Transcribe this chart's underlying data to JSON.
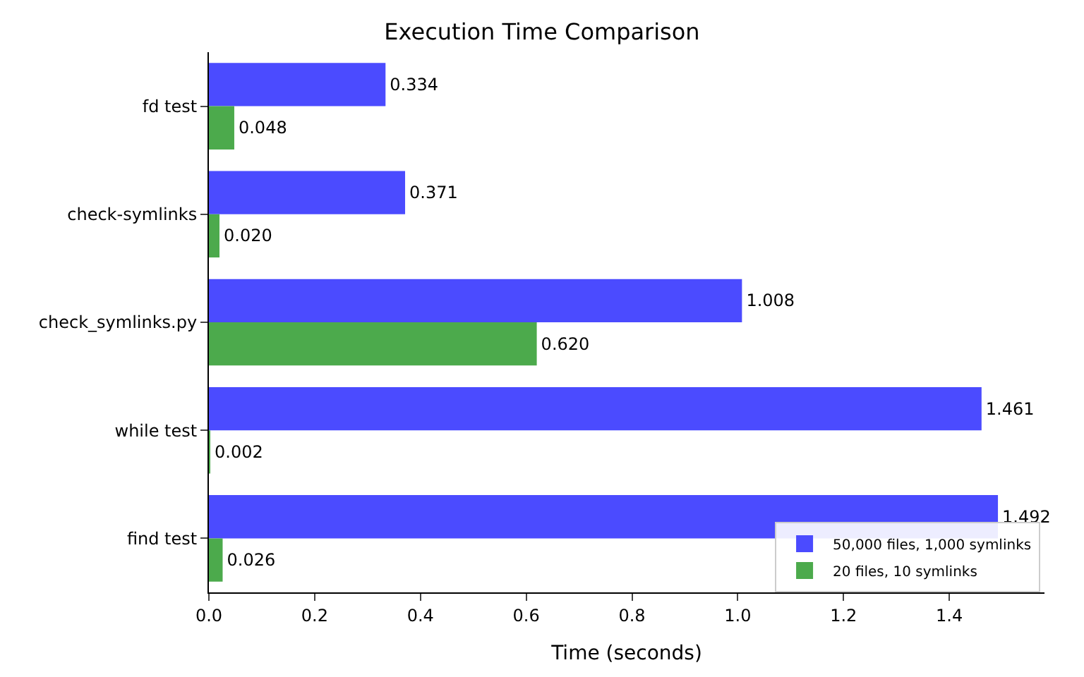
{
  "chart_data": {
    "type": "bar",
    "orientation": "horizontal",
    "title": "Execution Time Comparison",
    "xlabel": "Time (seconds)",
    "categories": [
      "fd test",
      "check-symlinks",
      "check_symlinks.py",
      "while test",
      "find test"
    ],
    "series": [
      {
        "name": "50,000 files, 1,000 symlinks",
        "color": "#4b4bff",
        "values": [
          0.334,
          0.371,
          1.008,
          1.461,
          1.492
        ],
        "value_labels": [
          "0.334",
          "0.371",
          "1.008",
          "1.461",
          "1.492"
        ]
      },
      {
        "name": "20 files, 10 symlinks",
        "color": "#4caa4c",
        "values": [
          0.048,
          0.02,
          0.62,
          0.002,
          0.026
        ],
        "value_labels": [
          "0.048",
          "0.020",
          "0.620",
          "0.002",
          "0.026"
        ]
      }
    ],
    "xlim": [
      0,
      1.58
    ],
    "xticks": [
      {
        "value": 0,
        "label": "0.0"
      },
      {
        "value": 0.2,
        "label": "0.2"
      },
      {
        "value": 0.4,
        "label": "0.4"
      },
      {
        "value": 0.6,
        "label": "0.6"
      },
      {
        "value": 0.8,
        "label": "0.8"
      },
      {
        "value": 1.0,
        "label": "1.0"
      },
      {
        "value": 1.2,
        "label": "1.2"
      },
      {
        "value": 1.4,
        "label": "1.4"
      }
    ],
    "legend": "bottom right"
  }
}
